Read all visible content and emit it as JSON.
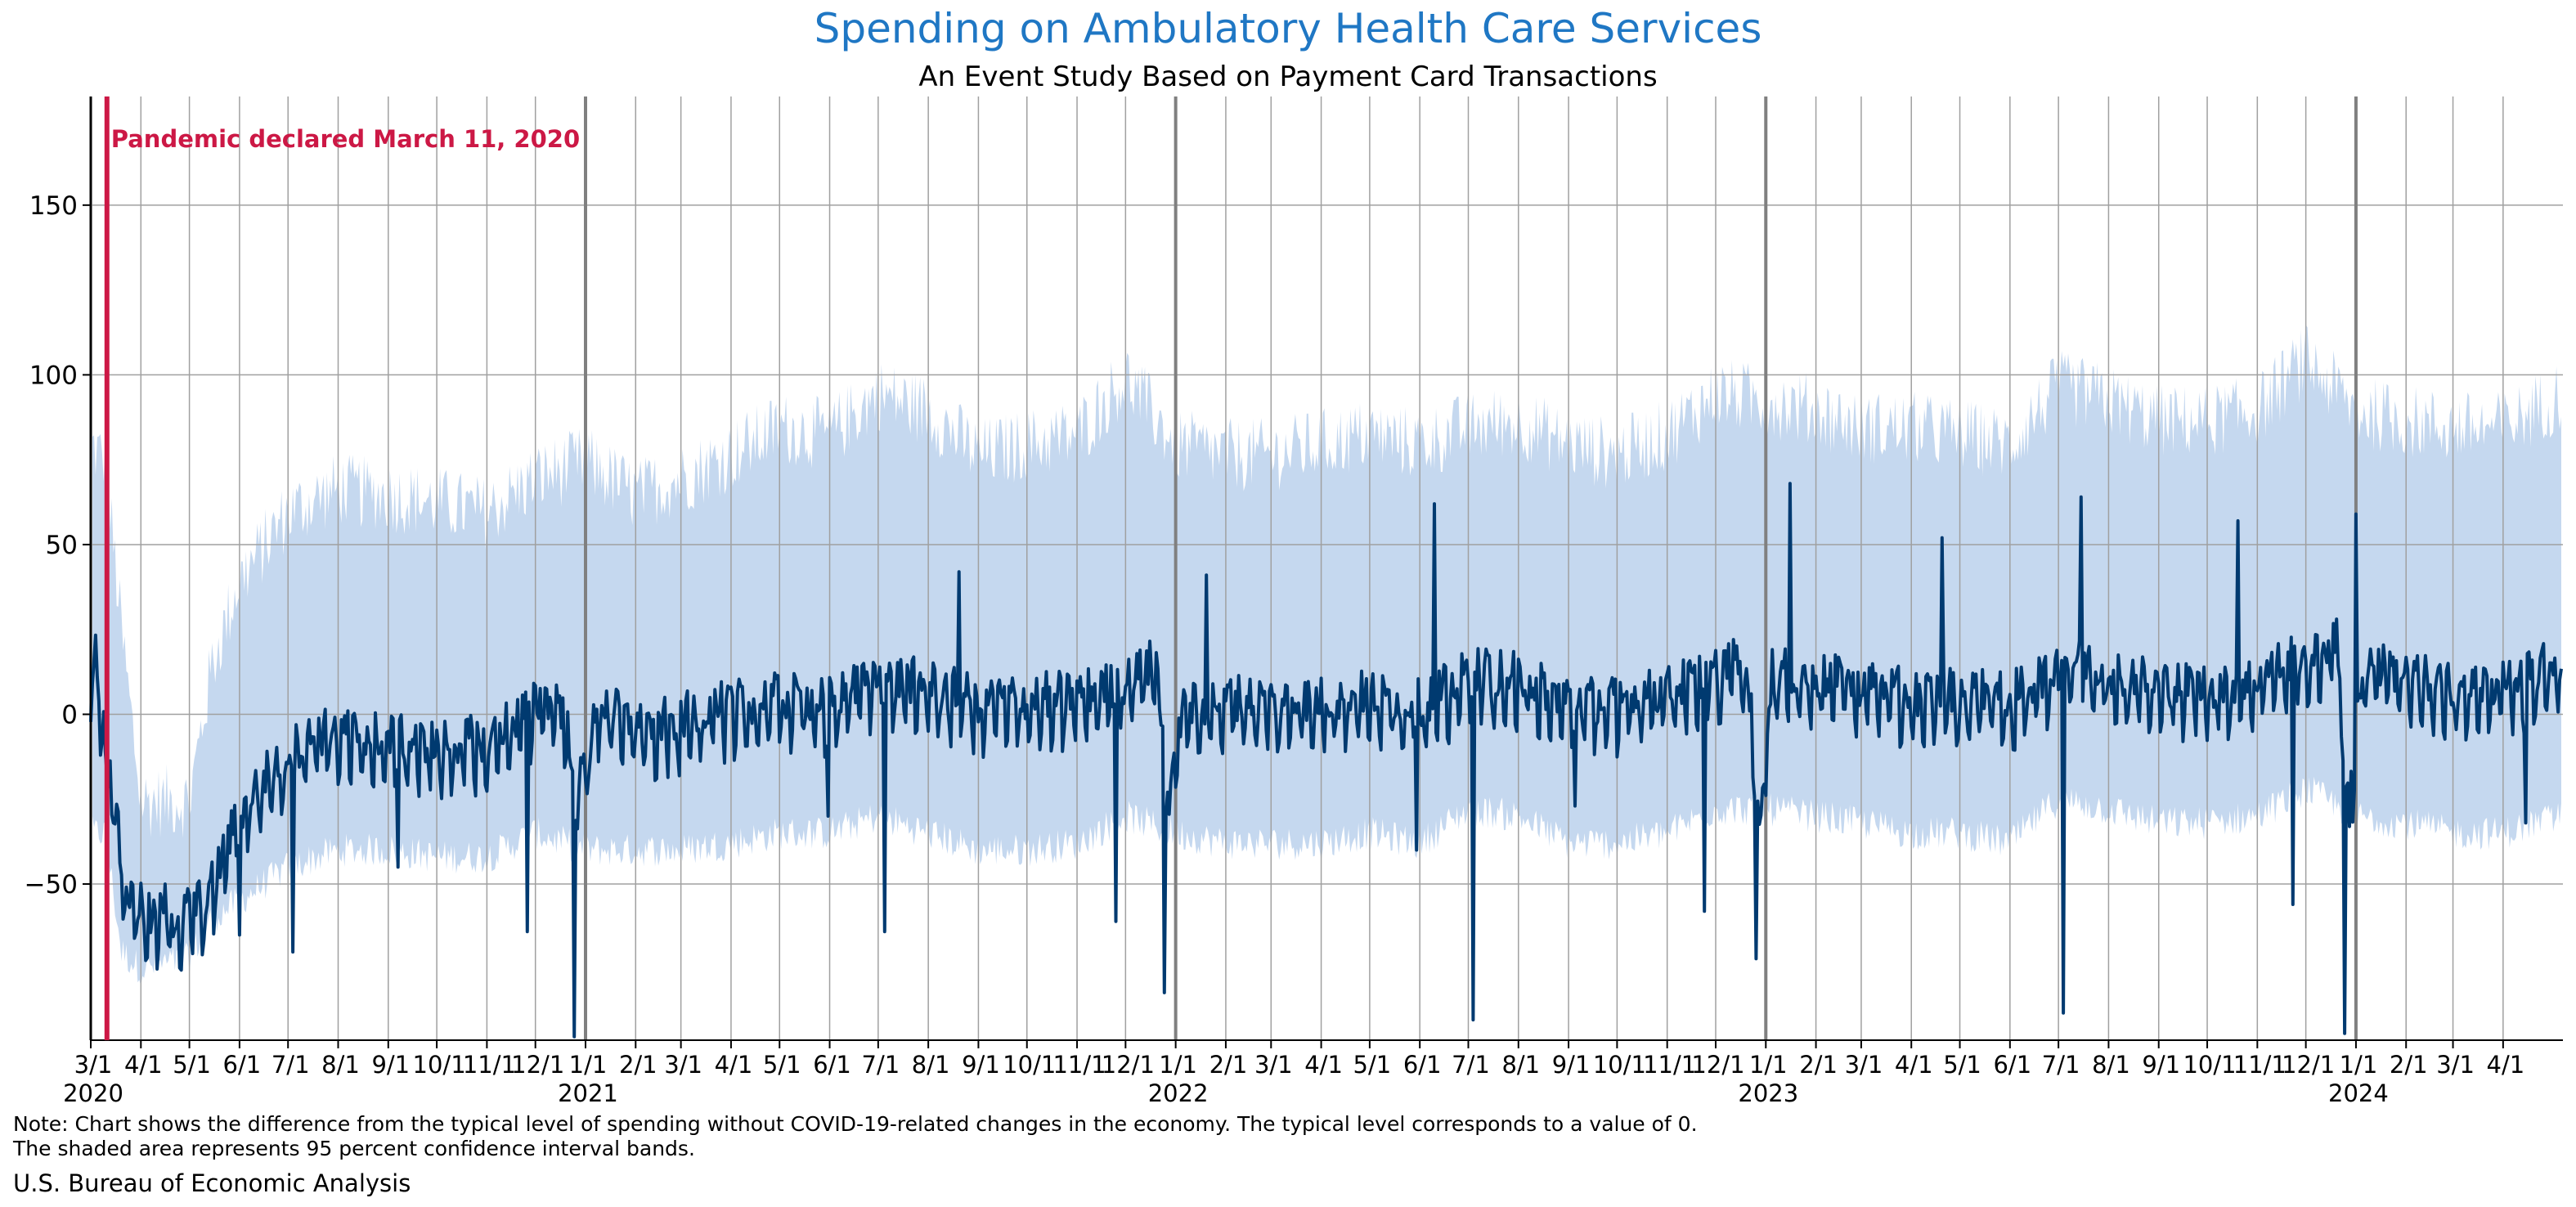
{
  "title": "Spending on Ambulatory Health Care Services",
  "subtitle": "An Event Study Based on Payment Card Transactions",
  "annotation": "Pandemic declared March 11, 2020",
  "note_line1": "Note: Chart shows the difference from the typical level of spending without COVID-19-related changes in the economy. The typical level corresponds to a value of 0.",
  "note_line2": "The shaded area represents 95 percent confidence interval bands.",
  "source": "U.S. Bureau of Economic Analysis",
  "colors": {
    "line": "#003a70",
    "band": "#c5d8ef",
    "annotation": "#cc1845",
    "title": "#1f77c4",
    "grid": "#a0a0a0",
    "year_line": "#808080"
  },
  "chart_data": {
    "type": "area",
    "title": "Spending on Ambulatory Health Care Services",
    "subtitle": "An Event Study Based on Payment Card Transactions",
    "xlabel": "",
    "ylabel": "",
    "xlim": [
      "2020-03-01",
      "2024-05-08"
    ],
    "ylim": [
      -96,
      182
    ],
    "yticks": [
      -50,
      0,
      50,
      100,
      150
    ],
    "ytick_labels": [
      "−50",
      "0",
      "50",
      "100",
      "150"
    ],
    "grid": true,
    "xtick_labels": [
      {
        "date": "2020-03-01",
        "label": "3/1",
        "year": "2020"
      },
      {
        "date": "2020-04-01",
        "label": "4/1"
      },
      {
        "date": "2020-05-01",
        "label": "5/1"
      },
      {
        "date": "2020-06-01",
        "label": "6/1"
      },
      {
        "date": "2020-07-01",
        "label": "7/1"
      },
      {
        "date": "2020-08-01",
        "label": "8/1"
      },
      {
        "date": "2020-09-01",
        "label": "9/1"
      },
      {
        "date": "2020-10-01",
        "label": "10/1"
      },
      {
        "date": "2020-11-01",
        "label": "11/1"
      },
      {
        "date": "2020-12-01",
        "label": "12/1"
      },
      {
        "date": "2021-01-01",
        "label": "1/1",
        "year": "2021"
      },
      {
        "date": "2021-02-01",
        "label": "2/1"
      },
      {
        "date": "2021-03-01",
        "label": "3/1"
      },
      {
        "date": "2021-04-01",
        "label": "4/1"
      },
      {
        "date": "2021-05-01",
        "label": "5/1"
      },
      {
        "date": "2021-06-01",
        "label": "6/1"
      },
      {
        "date": "2021-07-01",
        "label": "7/1"
      },
      {
        "date": "2021-08-01",
        "label": "8/1"
      },
      {
        "date": "2021-09-01",
        "label": "9/1"
      },
      {
        "date": "2021-10-01",
        "label": "10/1"
      },
      {
        "date": "2021-11-01",
        "label": "11/1"
      },
      {
        "date": "2021-12-01",
        "label": "12/1"
      },
      {
        "date": "2022-01-01",
        "label": "1/1",
        "year": "2022"
      },
      {
        "date": "2022-02-01",
        "label": "2/1"
      },
      {
        "date": "2022-03-01",
        "label": "3/1"
      },
      {
        "date": "2022-04-01",
        "label": "4/1"
      },
      {
        "date": "2022-05-01",
        "label": "5/1"
      },
      {
        "date": "2022-06-01",
        "label": "6/1"
      },
      {
        "date": "2022-07-01",
        "label": "7/1"
      },
      {
        "date": "2022-08-01",
        "label": "8/1"
      },
      {
        "date": "2022-09-01",
        "label": "9/1"
      },
      {
        "date": "2022-10-01",
        "label": "10/1"
      },
      {
        "date": "2022-11-01",
        "label": "11/1"
      },
      {
        "date": "2022-12-01",
        "label": "12/1"
      },
      {
        "date": "2023-01-01",
        "label": "1/1",
        "year": "2023"
      },
      {
        "date": "2023-02-01",
        "label": "2/1"
      },
      {
        "date": "2023-03-01",
        "label": "3/1"
      },
      {
        "date": "2023-04-01",
        "label": "4/1"
      },
      {
        "date": "2023-05-01",
        "label": "5/1"
      },
      {
        "date": "2023-06-01",
        "label": "6/1"
      },
      {
        "date": "2023-07-01",
        "label": "7/1"
      },
      {
        "date": "2023-08-01",
        "label": "8/1"
      },
      {
        "date": "2023-09-01",
        "label": "9/1"
      },
      {
        "date": "2023-10-01",
        "label": "10/1"
      },
      {
        "date": "2023-11-01",
        "label": "11/1"
      },
      {
        "date": "2023-12-01",
        "label": "12/1"
      },
      {
        "date": "2024-01-01",
        "label": "1/1",
        "year": "2024"
      },
      {
        "date": "2024-02-01",
        "label": "2/1"
      },
      {
        "date": "2024-03-01",
        "label": "3/1"
      },
      {
        "date": "2024-04-01",
        "label": "4/1"
      }
    ],
    "event_line": {
      "date": "2020-03-11",
      "label": "Pandemic declared March 11, 2020"
    },
    "series": [
      {
        "role": "estimate",
        "kind": "line",
        "points": [
          [
            "2020-03-01",
            5
          ],
          [
            "2020-03-04",
            20
          ],
          [
            "2020-03-07",
            3
          ],
          [
            "2020-03-10",
            -10
          ],
          [
            "2020-03-15",
            -25
          ],
          [
            "2020-03-20",
            -45
          ],
          [
            "2020-03-25",
            -55
          ],
          [
            "2020-04-01",
            -58
          ],
          [
            "2020-04-08",
            -62
          ],
          [
            "2020-04-15",
            -60
          ],
          [
            "2020-04-22",
            -62
          ],
          [
            "2020-05-01",
            -58
          ],
          [
            "2020-05-10",
            -55
          ],
          [
            "2020-05-20",
            -45
          ],
          [
            "2020-06-01",
            -30
          ],
          [
            "2020-06-15",
            -20
          ],
          [
            "2020-07-01",
            -12
          ],
          [
            "2020-07-15",
            -8
          ],
          [
            "2020-08-01",
            -5
          ],
          [
            "2020-09-01",
            -8
          ],
          [
            "2020-10-01",
            -10
          ],
          [
            "2020-11-01",
            -8
          ],
          [
            "2020-12-01",
            2
          ],
          [
            "2020-12-15",
            5
          ],
          [
            "2020-12-28",
            -20
          ],
          [
            "2021-01-01",
            -15
          ],
          [
            "2021-01-10",
            3
          ],
          [
            "2021-02-01",
            -5
          ],
          [
            "2021-03-01",
            -2
          ],
          [
            "2021-04-01",
            2
          ],
          [
            "2021-05-01",
            4
          ],
          [
            "2021-06-01",
            3
          ],
          [
            "2021-07-01",
            10
          ],
          [
            "2021-08-01",
            8
          ],
          [
            "2021-09-01",
            3
          ],
          [
            "2021-10-01",
            4
          ],
          [
            "2021-11-01",
            5
          ],
          [
            "2021-12-01",
            8
          ],
          [
            "2021-12-20",
            15
          ],
          [
            "2021-12-28",
            -30
          ],
          [
            "2022-01-05",
            0
          ],
          [
            "2022-02-01",
            4
          ],
          [
            "2022-03-01",
            3
          ],
          [
            "2022-04-01",
            3
          ],
          [
            "2022-05-01",
            5
          ],
          [
            "2022-06-01",
            2
          ],
          [
            "2022-07-05",
            12
          ],
          [
            "2022-08-01",
            10
          ],
          [
            "2022-09-01",
            4
          ],
          [
            "2022-10-01",
            3
          ],
          [
            "2022-11-01",
            6
          ],
          [
            "2022-12-01",
            12
          ],
          [
            "2022-12-20",
            15
          ],
          [
            "2022-12-28",
            -30
          ],
          [
            "2023-01-05",
            12
          ],
          [
            "2023-02-01",
            10
          ],
          [
            "2023-03-01",
            8
          ],
          [
            "2023-04-01",
            5
          ],
          [
            "2023-05-01",
            6
          ],
          [
            "2023-06-01",
            4
          ],
          [
            "2023-07-05",
            15
          ],
          [
            "2023-08-01",
            12
          ],
          [
            "2023-09-01",
            8
          ],
          [
            "2023-10-01",
            7
          ],
          [
            "2023-11-01",
            10
          ],
          [
            "2023-12-01",
            18
          ],
          [
            "2023-12-20",
            20
          ],
          [
            "2023-12-28",
            -30
          ],
          [
            "2024-01-05",
            15
          ],
          [
            "2024-02-01",
            10
          ],
          [
            "2024-03-01",
            8
          ],
          [
            "2024-04-01",
            7
          ],
          [
            "2024-05-07",
            15
          ]
        ],
        "spikes": [
          [
            "2020-04-16",
            -50
          ],
          [
            "2020-06-01",
            -65
          ],
          [
            "2020-07-04",
            -70
          ],
          [
            "2020-09-07",
            -45
          ],
          [
            "2020-11-26",
            -64
          ],
          [
            "2020-12-25",
            -95
          ],
          [
            "2021-05-31",
            -30
          ],
          [
            "2021-07-05",
            -64
          ],
          [
            "2021-08-20",
            42
          ],
          [
            "2021-11-25",
            -61
          ],
          [
            "2021-12-25",
            -82
          ],
          [
            "2022-01-20",
            41
          ],
          [
            "2022-05-30",
            -40
          ],
          [
            "2022-06-10",
            62
          ],
          [
            "2022-07-04",
            -90
          ],
          [
            "2022-09-05",
            -27
          ],
          [
            "2022-11-24",
            -58
          ],
          [
            "2022-12-26",
            -72
          ],
          [
            "2023-01-16",
            68
          ],
          [
            "2023-04-20",
            52
          ],
          [
            "2023-07-04",
            -88
          ],
          [
            "2023-07-15",
            64
          ],
          [
            "2023-10-20",
            57
          ],
          [
            "2023-11-23",
            -56
          ],
          [
            "2023-12-25",
            -94
          ],
          [
            "2024-01-01",
            59
          ],
          [
            "2024-04-15",
            -32
          ]
        ]
      },
      {
        "role": "95 percent confidence band",
        "kind": "band",
        "points": [
          [
            "2020-03-01",
            -35,
            75
          ],
          [
            "2020-03-10",
            -35,
            70
          ],
          [
            "2020-03-20",
            -70,
            20
          ],
          [
            "2020-04-01",
            -75,
            -30
          ],
          [
            "2020-05-01",
            -72,
            -30
          ],
          [
            "2020-05-15",
            -60,
            10
          ],
          [
            "2020-06-01",
            -55,
            35
          ],
          [
            "2020-07-01",
            -45,
            55
          ],
          [
            "2020-08-01",
            -40,
            62
          ],
          [
            "2020-09-01",
            -40,
            60
          ],
          [
            "2020-10-01",
            -42,
            58
          ],
          [
            "2020-11-01",
            -42,
            55
          ],
          [
            "2020-12-01",
            -35,
            65
          ],
          [
            "2021-01-01",
            -40,
            70
          ],
          [
            "2021-02-01",
            -40,
            60
          ],
          [
            "2021-03-01",
            -40,
            65
          ],
          [
            "2021-04-01",
            -38,
            72
          ],
          [
            "2021-05-01",
            -35,
            80
          ],
          [
            "2021-06-01",
            -35,
            78
          ],
          [
            "2021-07-01",
            -30,
            90
          ],
          [
            "2021-08-01",
            -35,
            85
          ],
          [
            "2021-09-01",
            -40,
            72
          ],
          [
            "2021-10-01",
            -40,
            75
          ],
          [
            "2021-11-01",
            -38,
            78
          ],
          [
            "2021-12-01",
            -30,
            95
          ],
          [
            "2022-01-01",
            -35,
            75
          ],
          [
            "2022-02-01",
            -38,
            72
          ],
          [
            "2022-03-01",
            -38,
            72
          ],
          [
            "2022-04-01",
            -38,
            75
          ],
          [
            "2022-05-01",
            -35,
            78
          ],
          [
            "2022-06-01",
            -38,
            75
          ],
          [
            "2022-07-01",
            -28,
            80
          ],
          [
            "2022-08-01",
            -30,
            82
          ],
          [
            "2022-09-01",
            -38,
            75
          ],
          [
            "2022-10-01",
            -38,
            72
          ],
          [
            "2022-11-01",
            -35,
            78
          ],
          [
            "2022-12-01",
            -28,
            90
          ],
          [
            "2023-01-01",
            -28,
            88
          ],
          [
            "2023-02-01",
            -30,
            85
          ],
          [
            "2023-03-01",
            -32,
            80
          ],
          [
            "2023-04-01",
            -35,
            80
          ],
          [
            "2023-05-01",
            -35,
            78
          ],
          [
            "2023-06-01",
            -38,
            75
          ],
          [
            "2023-07-01",
            -25,
            92
          ],
          [
            "2023-08-01",
            -28,
            88
          ],
          [
            "2023-09-01",
            -32,
            82
          ],
          [
            "2023-10-01",
            -32,
            82
          ],
          [
            "2023-11-01",
            -30,
            85
          ],
          [
            "2023-12-01",
            -22,
            100
          ],
          [
            "2024-01-01",
            -30,
            85
          ],
          [
            "2024-02-01",
            -32,
            82
          ],
          [
            "2024-03-01",
            -35,
            80
          ],
          [
            "2024-04-01",
            -35,
            80
          ],
          [
            "2024-05-07",
            -30,
            90
          ]
        ]
      }
    ]
  }
}
